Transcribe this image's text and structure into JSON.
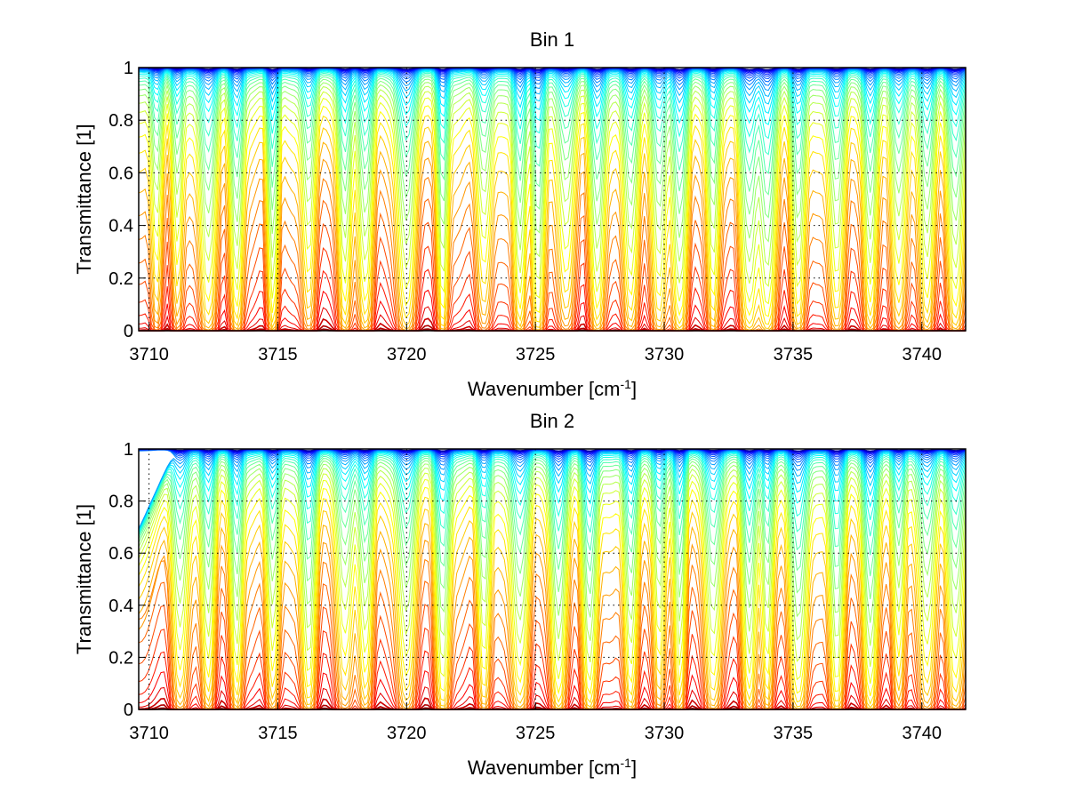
{
  "chart_data": [
    {
      "type": "line",
      "title": "Bin 1",
      "xlabel": "Wavenumber [cm",
      "xlabel_sup": "-1",
      "xlabel_end": "]",
      "ylabel": "Transmittance [1]",
      "xlim": [
        3709.6,
        3741.7
      ],
      "ylim": [
        0,
        1
      ],
      "xticks": [
        3710,
        3715,
        3720,
        3725,
        3730,
        3735,
        3740
      ],
      "xtick_labels": [
        "3710",
        "3715",
        "3720",
        "3725",
        "3730",
        "3735",
        "3740"
      ],
      "yticks": [
        0,
        0.2,
        0.4,
        0.6,
        0.8,
        1
      ],
      "ytick_labels": [
        "0",
        "0.2",
        "0.4",
        "0.6",
        "0.8",
        "1"
      ],
      "grid": true,
      "colormap": "jet",
      "series_count": 40,
      "absorption_lines": [
        3710.3,
        3711.1,
        3712.3,
        3713.4,
        3714.8,
        3716.2,
        3717.6,
        3718.4,
        3720.0,
        3721.4,
        3723.0,
        3724.4,
        3725.1,
        3726.2,
        3727.4,
        3728.7,
        3729.8,
        3730.6,
        3731.9,
        3733.3,
        3734.0,
        3735.2,
        3736.7,
        3738.0,
        3739.1,
        3740.2,
        3741.3
      ]
    },
    {
      "type": "line",
      "title": "Bin 2",
      "xlabel": "Wavenumber [cm",
      "xlabel_sup": "-1",
      "xlabel_end": "]",
      "ylabel": "Transmittance [1]",
      "xlim": [
        3709.6,
        3741.7
      ],
      "ylim": [
        0,
        1
      ],
      "xticks": [
        3710,
        3715,
        3720,
        3725,
        3730,
        3735,
        3740
      ],
      "xtick_labels": [
        "3710",
        "3715",
        "3720",
        "3725",
        "3730",
        "3735",
        "3740"
      ],
      "yticks": [
        0,
        0.2,
        0.4,
        0.6,
        0.8,
        1
      ],
      "ytick_labels": [
        "0",
        "0.2",
        "0.4",
        "0.6",
        "0.8",
        "1"
      ],
      "grid": true,
      "colormap": "jet",
      "series_count": 40,
      "absorption_lines": [
        3711.2,
        3712.3,
        3713.4,
        3714.8,
        3716.2,
        3717.6,
        3718.4,
        3720.0,
        3721.4,
        3723.0,
        3724.4,
        3725.9,
        3727.1,
        3728.7,
        3729.8,
        3730.6,
        3731.9,
        3733.3,
        3734.0,
        3735.2,
        3736.7,
        3738.0,
        3739.1,
        3740.2,
        3741.3
      ]
    }
  ]
}
